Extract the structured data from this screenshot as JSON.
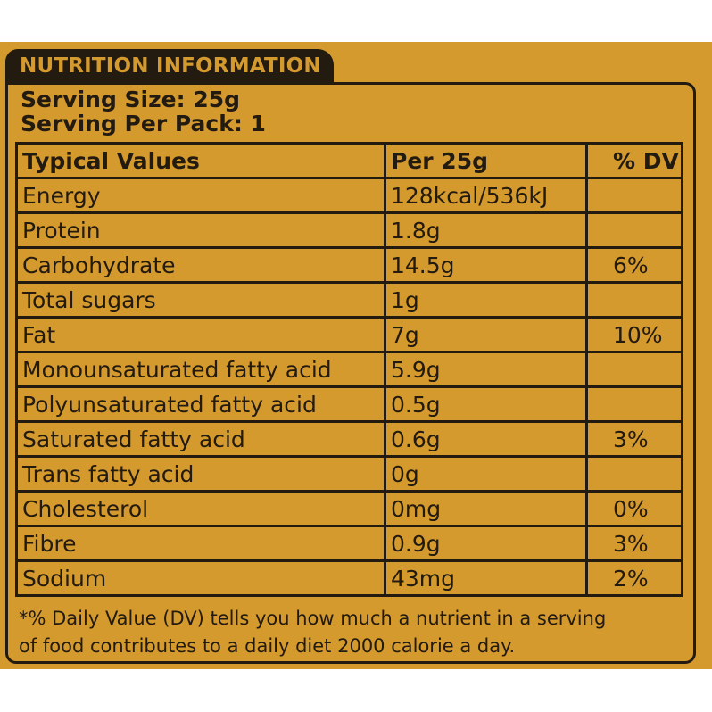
{
  "label": {
    "title": "NUTRITION INFORMATION",
    "serving_size": "Serving Size: 25g",
    "servings_per_pack": "Serving Per Pack: 1"
  },
  "table": {
    "headers": [
      "Typical Values",
      "Per 25g",
      "% DV"
    ],
    "rows": [
      {
        "name": "Energy",
        "per": "128kcal/536kJ",
        "dv": ""
      },
      {
        "name": "Protein",
        "per": "1.8g",
        "dv": ""
      },
      {
        "name": "Carbohydrate",
        "per": "14.5g",
        "dv": "6%"
      },
      {
        "name": "Total sugars",
        "per": "1g",
        "dv": ""
      },
      {
        "name": "Fat",
        "per": "7g",
        "dv": "10%"
      },
      {
        "name": "Monounsaturated fatty acid",
        "per": "5.9g",
        "dv": ""
      },
      {
        "name": "Polyunsaturated fatty acid",
        "per": "0.5g",
        "dv": ""
      },
      {
        "name": "Saturated fatty acid",
        "per": "0.6g",
        "dv": "3%"
      },
      {
        "name": "Trans fatty acid",
        "per": "0g",
        "dv": ""
      },
      {
        "name": "Cholesterol",
        "per": "0mg",
        "dv": "0%"
      },
      {
        "name": "Fibre",
        "per": "0.9g",
        "dv": "3%"
      },
      {
        "name": "Sodium",
        "per": "43mg",
        "dv": "2%"
      }
    ]
  },
  "footnote": {
    "line1": "*% Daily Value (DV) tells you how much a nutrient in a serving",
    "line2": "of food contributes to a daily diet 2000 calorie a day."
  },
  "colors": {
    "background": "#d49a2e",
    "ink": "#231a10"
  }
}
